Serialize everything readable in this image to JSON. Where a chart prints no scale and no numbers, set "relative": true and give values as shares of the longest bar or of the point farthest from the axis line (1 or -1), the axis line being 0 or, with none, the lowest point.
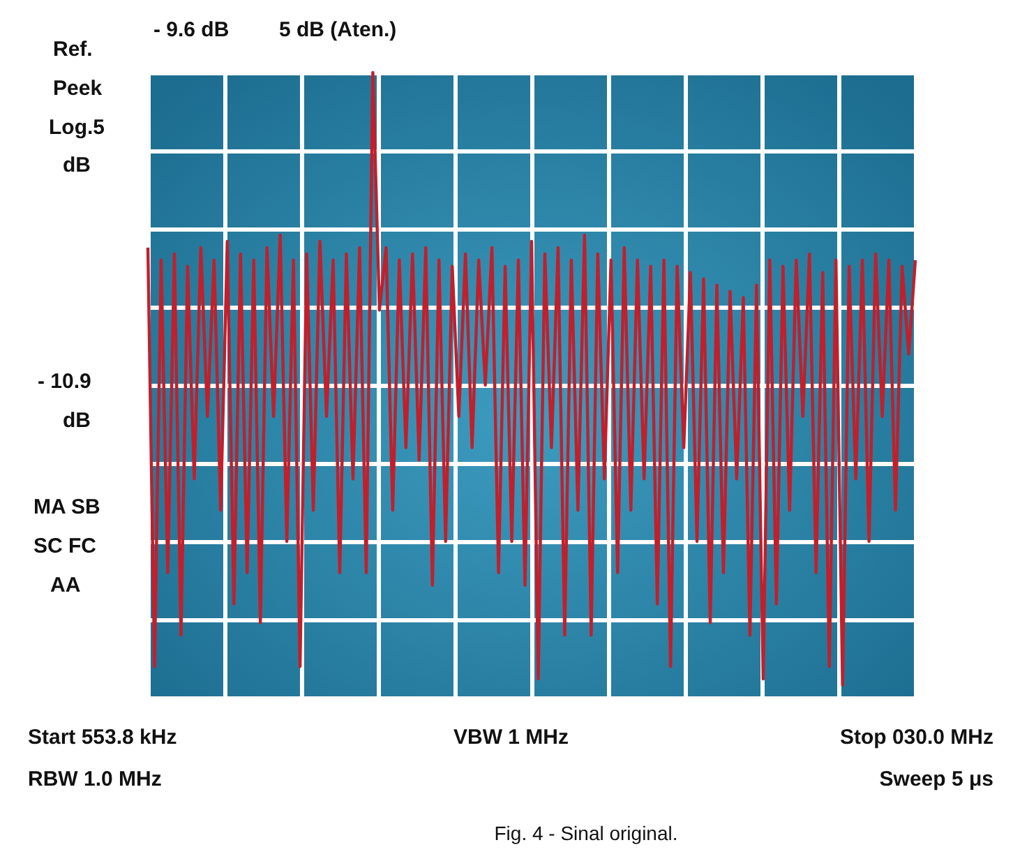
{
  "chart_data": {
    "type": "line",
    "relative": true,
    "color": "#c21f2b",
    "grid": true,
    "marker": "none",
    "line_style": "solid",
    "categories": [
      null,
      null,
      null,
      null,
      null,
      null,
      null,
      null,
      null,
      null,
      null,
      null,
      null,
      null,
      null,
      null,
      null,
      null,
      null,
      null,
      null,
      null,
      null,
      null,
      null,
      null,
      null,
      null,
      null,
      null,
      null,
      null,
      null,
      null,
      null,
      null,
      null,
      null,
      null,
      null,
      null,
      null,
      null,
      null,
      null,
      null,
      null,
      null,
      null,
      null,
      null,
      null,
      null,
      null,
      null,
      null,
      null,
      null,
      null,
      null,
      null,
      null,
      null,
      null,
      null,
      null,
      null,
      null,
      null,
      null,
      null,
      null,
      null,
      null,
      null,
      null,
      null,
      null,
      null,
      null,
      null,
      null,
      null,
      null,
      null,
      null,
      null,
      null,
      null,
      null,
      null,
      null,
      null,
      null,
      null,
      null,
      null,
      null,
      null,
      null,
      null,
      null,
      null,
      null,
      null,
      null,
      null,
      null,
      null,
      null,
      null,
      null,
      null,
      null,
      null,
      null,
      null
    ],
    "values": [
      0.72,
      0.05,
      0.7,
      0.2,
      0.71,
      0.1,
      0.69,
      0.35,
      0.72,
      0.45,
      0.7,
      0.3,
      0.73,
      0.15,
      0.71,
      0.2,
      0.7,
      0.12,
      0.72,
      0.45,
      0.74,
      0.25,
      0.7,
      0.05,
      0.71,
      0.3,
      0.73,
      0.45,
      0.7,
      0.2,
      0.71,
      0.35,
      0.72,
      0.2,
      1.0,
      0.62,
      0.72,
      0.3,
      0.7,
      0.4,
      0.71,
      0.38,
      0.72,
      0.18,
      0.7,
      0.25,
      0.69,
      0.45,
      0.71,
      0.4,
      0.7,
      0.5,
      0.72,
      0.2,
      0.69,
      0.25,
      0.7,
      0.18,
      0.73,
      0.03,
      0.71,
      0.4,
      0.72,
      0.1,
      0.7,
      0.3,
      0.74,
      0.1,
      0.71,
      0.35,
      0.7,
      0.2,
      0.72,
      0.3,
      0.7,
      0.35,
      0.69,
      0.15,
      0.7,
      0.05,
      0.69,
      0.4,
      0.68,
      0.25,
      0.67,
      0.12,
      0.66,
      0.2,
      0.65,
      0.35,
      0.64,
      0.1,
      0.66,
      0.03,
      0.7,
      0.15,
      0.69,
      0.3,
      0.7,
      0.45,
      0.71,
      0.2,
      0.68,
      0.05,
      0.7,
      0.02,
      0.69,
      0.35,
      0.7,
      0.25,
      0.71,
      0.45,
      0.7,
      0.3,
      0.69,
      0.55,
      0.7
    ],
    "annotations": [
      "Ref.",
      "Peek",
      "Log.5",
      "dB",
      "- 10.9",
      "dB",
      "MA SB",
      "SC FC",
      "AA",
      "- 9.6 dB",
      "5 dB (Aten.)",
      "Start 553.8 kHz",
      "VBW 1 MHz",
      "Stop 030.0 MHz",
      "RBW 1.0 MHz",
      "Sweep 5 μs",
      "Fig. 4 - Sinal original."
    ]
  }
}
